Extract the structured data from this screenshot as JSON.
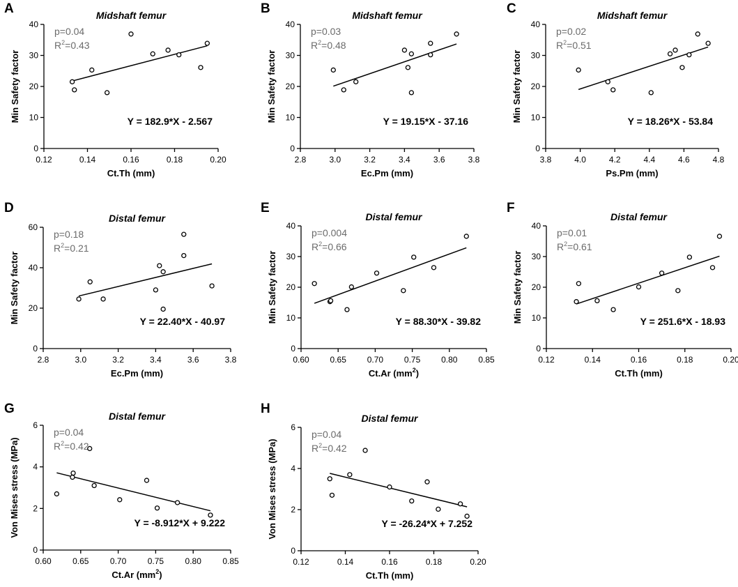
{
  "chart_data": [
    {
      "panel": "A",
      "type": "scatter",
      "title": "Midshaft femur",
      "xlabel": "Ct.Th (mm)",
      "ylabel": "Min Safety factor",
      "xlim": [
        0.12,
        0.2
      ],
      "ylim": [
        0,
        40
      ],
      "xticks": [
        0.12,
        0.14,
        0.16,
        0.18,
        0.2
      ],
      "xtick_labels": [
        "0.12",
        "0.14",
        "0.16",
        "0.18",
        "0.20"
      ],
      "yticks": [
        0,
        10,
        20,
        30,
        40
      ],
      "ytick_labels": [
        "0",
        "10",
        "20",
        "30",
        "40"
      ],
      "p_text": "p=0.04",
      "r2_prefix": "R",
      "r2_sup": "2",
      "r2_value": "=0.43",
      "equation": "Y = 182.9*X - 2.567",
      "fit": {
        "slope": 182.9,
        "intercept": -2.567
      },
      "x": [
        0.133,
        0.134,
        0.142,
        0.149,
        0.16,
        0.17,
        0.177,
        0.182,
        0.192,
        0.195
      ],
      "y": [
        21.5,
        18.9,
        25.3,
        18.0,
        36.9,
        30.5,
        31.7,
        30.2,
        26.1,
        33.9
      ]
    },
    {
      "panel": "B",
      "type": "scatter",
      "title": "Midshaft femur",
      "xlabel": "Ec.Pm (mm)",
      "ylabel": "Min Safety factor",
      "xlim": [
        2.8,
        3.8
      ],
      "ylim": [
        0,
        40
      ],
      "xticks": [
        2.8,
        3.0,
        3.2,
        3.4,
        3.6,
        3.8
      ],
      "xtick_labels": [
        "2.8",
        "3.0",
        "3.2",
        "3.4",
        "3.6",
        "3.8"
      ],
      "yticks": [
        0,
        10,
        20,
        30,
        40
      ],
      "ytick_labels": [
        "0",
        "10",
        "20",
        "30",
        "40"
      ],
      "p_text": "p=0.03",
      "r2_prefix": "R",
      "r2_sup": "2",
      "r2_value": "=0.48",
      "equation": "Y = 19.15*X - 37.16",
      "fit": {
        "slope": 19.15,
        "intercept": -37.16
      },
      "x": [
        2.99,
        3.05,
        3.12,
        3.4,
        3.42,
        3.44,
        3.44,
        3.55,
        3.55,
        3.7
      ],
      "y": [
        25.3,
        18.9,
        21.5,
        31.7,
        26.1,
        30.5,
        18.0,
        30.2,
        33.9,
        36.9
      ]
    },
    {
      "panel": "C",
      "type": "scatter",
      "title": "Midshaft femur",
      "xlabel": "Ps.Pm (mm)",
      "ylabel": "Min Safety factor",
      "xlim": [
        3.8,
        4.8
      ],
      "ylim": [
        0,
        40
      ],
      "xticks": [
        3.8,
        4.0,
        4.2,
        4.4,
        4.6,
        4.8
      ],
      "xtick_labels": [
        "3.8",
        "4.0",
        "4.2",
        "4.4",
        "4.6",
        "4.8"
      ],
      "yticks": [
        0,
        10,
        20,
        30,
        40
      ],
      "ytick_labels": [
        "0",
        "10",
        "20",
        "30",
        "40"
      ],
      "p_text": "p=0.02",
      "r2_prefix": "R",
      "r2_sup": "2",
      "r2_value": "=0.51",
      "equation": "Y = 18.26*X - 53.84",
      "fit": {
        "slope": 18.26,
        "intercept": -53.84
      },
      "x": [
        3.99,
        4.16,
        4.19,
        4.41,
        4.52,
        4.55,
        4.59,
        4.63,
        4.68,
        4.74
      ],
      "y": [
        25.3,
        21.5,
        18.9,
        18.0,
        30.5,
        31.7,
        26.1,
        30.2,
        36.9,
        33.9
      ]
    },
    {
      "panel": "D",
      "type": "scatter",
      "title": "Distal femur",
      "xlabel": "Ec.Pm (mm)",
      "ylabel": "Min Safety factor",
      "xlim": [
        2.8,
        3.8
      ],
      "ylim": [
        0,
        60
      ],
      "xticks": [
        2.8,
        3.0,
        3.2,
        3.4,
        3.6,
        3.8
      ],
      "xtick_labels": [
        "2.8",
        "3.0",
        "3.2",
        "3.4",
        "3.6",
        "3.8"
      ],
      "yticks": [
        0,
        20,
        40,
        60
      ],
      "ytick_labels": [
        "0",
        "20",
        "40",
        "60"
      ],
      "p_text": "p=0.18",
      "r2_prefix": "R",
      "r2_sup": "2",
      "r2_value": "=0.21",
      "equation": "Y = 22.40*X - 40.97",
      "fit": {
        "slope": 22.4,
        "intercept": -40.97
      },
      "x": [
        2.99,
        3.05,
        3.12,
        3.4,
        3.42,
        3.44,
        3.44,
        3.55,
        3.55,
        3.7
      ],
      "y": [
        24.5,
        33.0,
        24.5,
        29.0,
        41.0,
        38.0,
        19.5,
        46.0,
        56.5,
        31.0
      ]
    },
    {
      "panel": "E",
      "type": "scatter",
      "title": "Distal femur",
      "xlabel": "Ct.Ar (mm",
      "xlabel_sup": "2",
      "xlabel_suffix": ")",
      "ylabel": "Min Safety factor",
      "xlim": [
        0.6,
        0.85
      ],
      "ylim": [
        0,
        40
      ],
      "xticks": [
        0.6,
        0.65,
        0.7,
        0.75,
        0.8,
        0.85
      ],
      "xtick_labels": [
        "0.60",
        "0.65",
        "0.70",
        "0.75",
        "0.80",
        "0.85"
      ],
      "yticks": [
        0,
        10,
        20,
        30,
        40
      ],
      "ytick_labels": [
        "0",
        "10",
        "20",
        "30",
        "40"
      ],
      "p_text": "p=0.004",
      "r2_prefix": "R",
      "r2_sup": "2",
      "r2_value": "=0.66",
      "equation": "Y = 88.30*X - 39.82",
      "fit": {
        "slope": 88.3,
        "intercept": -39.82
      },
      "x": [
        0.618,
        0.639,
        0.64,
        0.662,
        0.668,
        0.702,
        0.738,
        0.752,
        0.779,
        0.823
      ],
      "y": [
        21.2,
        15.3,
        15.6,
        12.7,
        20.1,
        24.6,
        18.9,
        29.8,
        26.4,
        36.6
      ]
    },
    {
      "panel": "F",
      "type": "scatter",
      "title": "Distal femur",
      "xlabel": "Ct.Th (mm)",
      "ylabel": "Min Safety factor",
      "xlim": [
        0.12,
        0.2
      ],
      "ylim": [
        0,
        40
      ],
      "xticks": [
        0.12,
        0.14,
        0.16,
        0.18,
        0.2
      ],
      "xtick_labels": [
        "0.12",
        "0.14",
        "0.16",
        "0.18",
        "0.20"
      ],
      "yticks": [
        0,
        10,
        20,
        30,
        40
      ],
      "ytick_labels": [
        "0",
        "10",
        "20",
        "30",
        "40"
      ],
      "p_text": "p=0.01",
      "r2_prefix": "R",
      "r2_sup": "2",
      "r2_value": "=0.61",
      "equation": "Y = 251.6*X - 18.93",
      "fit": {
        "slope": 251.6,
        "intercept": -18.93
      },
      "x": [
        0.133,
        0.134,
        0.142,
        0.149,
        0.16,
        0.17,
        0.177,
        0.182,
        0.192,
        0.195
      ],
      "y": [
        15.3,
        21.2,
        15.6,
        12.7,
        20.1,
        24.6,
        18.9,
        29.8,
        26.4,
        36.6
      ]
    },
    {
      "panel": "G",
      "type": "scatter",
      "title": "Distal femur",
      "xlabel": "Ct.Ar (mm",
      "xlabel_sup": "2",
      "xlabel_suffix": ")",
      "ylabel": "Von Mises stress (MPa)",
      "xlim": [
        0.6,
        0.85
      ],
      "ylim": [
        0,
        6
      ],
      "xticks": [
        0.6,
        0.65,
        0.7,
        0.75,
        0.8,
        0.85
      ],
      "xtick_labels": [
        "0.60",
        "0.65",
        "0.70",
        "0.75",
        "0.80",
        "0.85"
      ],
      "yticks": [
        0,
        2,
        4,
        6
      ],
      "ytick_labels": [
        "0",
        "2",
        "4",
        "6"
      ],
      "p_text": "p=0.04",
      "r2_prefix": "R",
      "r2_sup": "2",
      "r2_value": "=0.42",
      "equation": "Y = -8.912*X + 9.222",
      "fit": {
        "slope": -8.912,
        "intercept": 9.222
      },
      "x": [
        0.618,
        0.639,
        0.64,
        0.662,
        0.668,
        0.702,
        0.738,
        0.752,
        0.779,
        0.823
      ],
      "y": [
        2.7,
        3.5,
        3.7,
        4.88,
        3.1,
        2.42,
        3.35,
        2.02,
        2.28,
        1.68
      ]
    },
    {
      "panel": "H",
      "type": "scatter",
      "title": "Distal femur",
      "xlabel": "Ct.Th (mm)",
      "ylabel": "Von Mises stress (MPa)",
      "xlim": [
        0.12,
        0.2
      ],
      "ylim": [
        0,
        6
      ],
      "xticks": [
        0.12,
        0.14,
        0.16,
        0.18,
        0.2
      ],
      "xtick_labels": [
        "0.12",
        "0.14",
        "0.16",
        "0.18",
        "0.20"
      ],
      "yticks": [
        0,
        2,
        4,
        6
      ],
      "ytick_labels": [
        "0",
        "2",
        "4",
        "6"
      ],
      "p_text": "p=0.04",
      "r2_prefix": "R",
      "r2_sup": "2",
      "r2_value": "=0.42",
      "equation": "Y = -26.24*X + 7.252",
      "fit": {
        "slope": -26.24,
        "intercept": 7.252
      },
      "x": [
        0.133,
        0.134,
        0.142,
        0.149,
        0.16,
        0.17,
        0.177,
        0.182,
        0.192,
        0.195
      ],
      "y": [
        3.5,
        2.7,
        3.7,
        4.88,
        3.1,
        2.42,
        3.35,
        2.02,
        2.28,
        1.68
      ]
    }
  ]
}
